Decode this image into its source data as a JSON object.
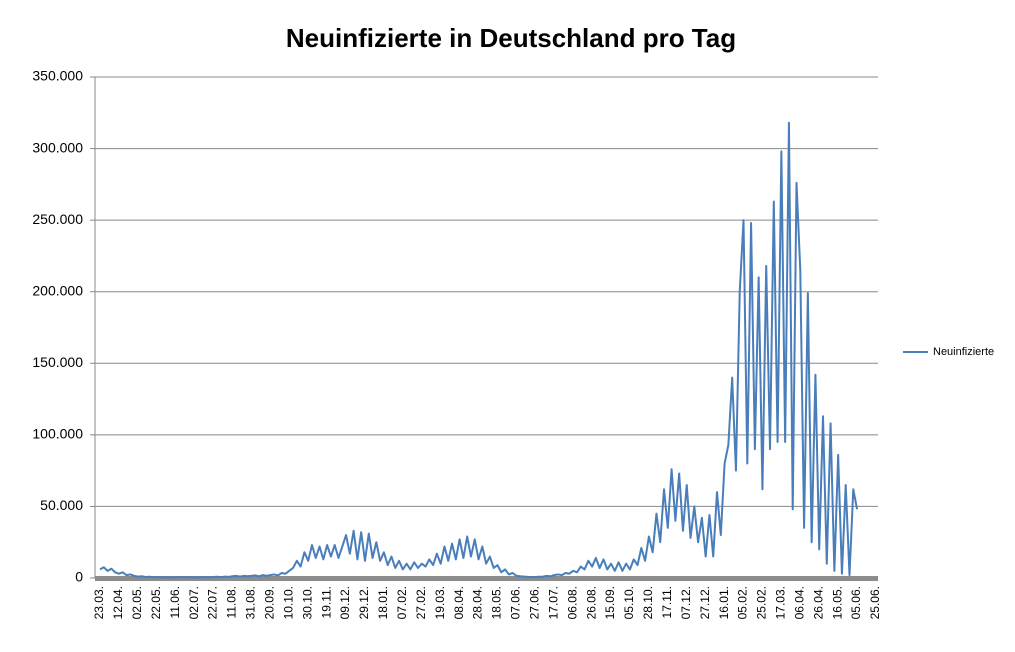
{
  "chart_data": {
    "type": "line",
    "title": "Neuinfizierte in Deutschland pro Tag",
    "categories": [
      "23.03.",
      null,
      null,
      null,
      null,
      "12.04.",
      null,
      null,
      null,
      null,
      "02.05.",
      null,
      null,
      null,
      null,
      "22.05.",
      null,
      null,
      null,
      null,
      "11.06.",
      null,
      null,
      null,
      null,
      "02.07.",
      null,
      null,
      null,
      null,
      "22.07.",
      null,
      null,
      null,
      null,
      "11.08.",
      null,
      null,
      null,
      null,
      "31.08.",
      null,
      null,
      null,
      null,
      "20.09.",
      null,
      null,
      null,
      null,
      "10.10.",
      null,
      null,
      null,
      null,
      "30.10.",
      null,
      null,
      null,
      null,
      "19.11.",
      null,
      null,
      null,
      null,
      "09.12.",
      null,
      null,
      null,
      null,
      "29.12.",
      null,
      null,
      null,
      null,
      "18.01.",
      null,
      null,
      null,
      null,
      "07.02.",
      null,
      null,
      null,
      null,
      "27.02.",
      null,
      null,
      null,
      null,
      "19.03.",
      null,
      null,
      null,
      null,
      "08.04.",
      null,
      null,
      null,
      null,
      "28.04.",
      null,
      null,
      null,
      null,
      "18.05.",
      null,
      null,
      null,
      null,
      "07.06.",
      null,
      null,
      null,
      null,
      "27.06.",
      null,
      null,
      null,
      null,
      "17.07.",
      null,
      null,
      null,
      null,
      "06.08.",
      null,
      null,
      null,
      null,
      "26.08.",
      null,
      null,
      null,
      null,
      "15.09.",
      null,
      null,
      null,
      null,
      "05.10.",
      null,
      null,
      null,
      null,
      "28.10.",
      null,
      null,
      null,
      null,
      "17.11.",
      null,
      null,
      null,
      null,
      "07.12.",
      null,
      null,
      null,
      null,
      "27.12.",
      null,
      null,
      null,
      null,
      "16.01.",
      null,
      null,
      null,
      null,
      "05.02.",
      null,
      null,
      null,
      null,
      "25.02.",
      null,
      null,
      null,
      null,
      "17.03.",
      null,
      null,
      null,
      null,
      "06.04.",
      null,
      null,
      null,
      null,
      "26.04.",
      null,
      null,
      null,
      null,
      "16.05.",
      null,
      null,
      null,
      null,
      "05.06.",
      null,
      null,
      null,
      null,
      "25.06."
    ],
    "series": [
      {
        "name": "Neuinfizierte",
        "color": "#4a7ebb",
        "values": [
          6000,
          7500,
          5000,
          6500,
          4000,
          3000,
          4000,
          2000,
          2500,
          1500,
          1000,
          1200,
          700,
          900,
          600,
          600,
          500,
          400,
          500,
          400,
          500,
          800,
          400,
          600,
          400,
          400,
          500,
          400,
          600,
          500,
          700,
          900,
          600,
          1000,
          800,
          1200,
          1500,
          1000,
          1500,
          1200,
          1500,
          1800,
          1200,
          2000,
          1500,
          2000,
          2500,
          1800,
          3500,
          3000,
          5000,
          7000,
          12000,
          8000,
          18000,
          12000,
          23000,
          14000,
          22000,
          13000,
          23000,
          15000,
          23000,
          14000,
          22000,
          30000,
          17000,
          33000,
          13000,
          32000,
          12000,
          31000,
          14000,
          25000,
          12000,
          18000,
          9000,
          15000,
          7000,
          12000,
          6000,
          10000,
          6000,
          11000,
          7000,
          10000,
          8000,
          13000,
          9000,
          17000,
          10000,
          22000,
          12000,
          24000,
          13000,
          27000,
          14000,
          29000,
          15000,
          27000,
          13000,
          22000,
          10000,
          15000,
          7000,
          9000,
          4000,
          6000,
          2500,
          3500,
          1500,
          1200,
          1000,
          800,
          600,
          700,
          900,
          1000,
          1500,
          1200,
          2000,
          2500,
          2000,
          3500,
          3000,
          5000,
          4000,
          8000,
          6000,
          12000,
          8000,
          14000,
          7000,
          13000,
          6000,
          10000,
          5000,
          11000,
          5000,
          10000,
          6000,
          13000,
          9000,
          21000,
          12000,
          29000,
          18000,
          45000,
          25000,
          62000,
          35000,
          76000,
          40000,
          73000,
          33000,
          65000,
          28000,
          50000,
          25000,
          42000,
          15000,
          44000,
          15000,
          60000,
          30000,
          80000,
          93000,
          140000,
          75000,
          200000,
          250000,
          80000,
          248000,
          90000,
          210000,
          62000,
          218000,
          90000,
          263000,
          95000,
          298000,
          95000,
          318000,
          48000,
          276000,
          215000,
          35000,
          199000,
          25000,
          142000,
          20000,
          113000,
          10000,
          108000,
          5000,
          86000,
          3000,
          65000,
          2000,
          62000,
          48000,
          null,
          null,
          null,
          null,
          null
        ]
      }
    ],
    "ylim": [
      0,
      350000
    ],
    "yticks": [
      0,
      {
        "value": 50000,
        "label": "50.000"
      },
      {
        "value": 100000,
        "label": "100.000"
      },
      {
        "value": 150000,
        "label": "150.000"
      },
      {
        "value": 200000,
        "label": "200.000"
      },
      {
        "value": 250000,
        "label": "250.000"
      },
      {
        "value": 300000,
        "label": "300.000"
      },
      {
        "value": 350000,
        "label": "350.000"
      }
    ],
    "grid": true,
    "legend": "right"
  }
}
